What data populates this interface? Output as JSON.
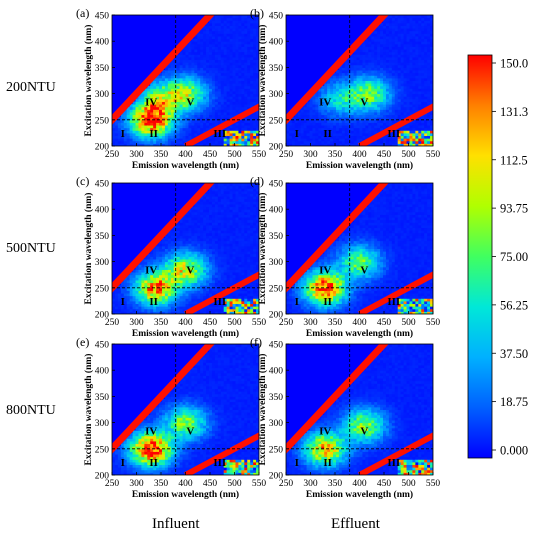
{
  "figure": {
    "row_labels": [
      "200NTU",
      "500NTU",
      "800NTU"
    ],
    "column_labels": [
      "Influent",
      "Effluent"
    ]
  },
  "chart_data": {
    "type": "heatmap",
    "panel_letters": [
      "(a)",
      "(b)",
      "(c)",
      "(d)",
      "(e)",
      "(f)"
    ],
    "xlabel": "Emission wavelength (nm)",
    "ylabel": "Excitation wavelength (nm)",
    "xlim": [
      250,
      550
    ],
    "ylim": [
      200,
      450
    ],
    "xticks": [
      250,
      300,
      350,
      400,
      450,
      500,
      550
    ],
    "yticks": [
      200,
      250,
      300,
      350,
      400,
      450
    ],
    "region_divider_em": 380,
    "region_divider_ex": 250,
    "regions": [
      {
        "label": "I",
        "em": 272,
        "ex": 225
      },
      {
        "label": "II",
        "em": 335,
        "ex": 225
      },
      {
        "label": "III",
        "em": 470,
        "ex": 225
      },
      {
        "label": "IV",
        "em": 330,
        "ex": 285
      },
      {
        "label": "V",
        "em": 410,
        "ex": 285
      }
    ],
    "colorbar": {
      "ticks": [
        "0.000",
        "18.75",
        "37.50",
        "56.25",
        "75.00",
        "93.75",
        "112.5",
        "131.3",
        "150.0"
      ],
      "min": 0,
      "max": 150,
      "colors": [
        "#0000ff",
        "#0060ff",
        "#00b0ff",
        "#00e8d8",
        "#40ff60",
        "#b0ff00",
        "#ffe000",
        "#ff8000",
        "#ff0000"
      ]
    },
    "panels": [
      {
        "letter": "(a)",
        "peaks": [
          {
            "em": 330,
            "ex": 250,
            "v": 150
          },
          {
            "em": 400,
            "ex": 300,
            "v": 82
          },
          {
            "em": 350,
            "ex": 290,
            "v": 70
          }
        ]
      },
      {
        "letter": "(b)",
        "peaks": [
          {
            "em": 420,
            "ex": 300,
            "v": 75
          },
          {
            "em": 360,
            "ex": 290,
            "v": 45
          }
        ]
      },
      {
        "letter": "(c)",
        "peaks": [
          {
            "em": 340,
            "ex": 250,
            "v": 125
          },
          {
            "em": 400,
            "ex": 285,
            "v": 98
          }
        ]
      },
      {
        "letter": "(d)",
        "peaks": [
          {
            "em": 330,
            "ex": 250,
            "v": 140
          },
          {
            "em": 400,
            "ex": 300,
            "v": 72
          }
        ]
      },
      {
        "letter": "(e)",
        "peaks": [
          {
            "em": 330,
            "ex": 250,
            "v": 150
          },
          {
            "em": 400,
            "ex": 300,
            "v": 78
          }
        ]
      },
      {
        "letter": "(f)",
        "peaks": [
          {
            "em": 330,
            "ex": 250,
            "v": 112
          },
          {
            "em": 410,
            "ex": 295,
            "v": 82
          }
        ]
      }
    ]
  }
}
